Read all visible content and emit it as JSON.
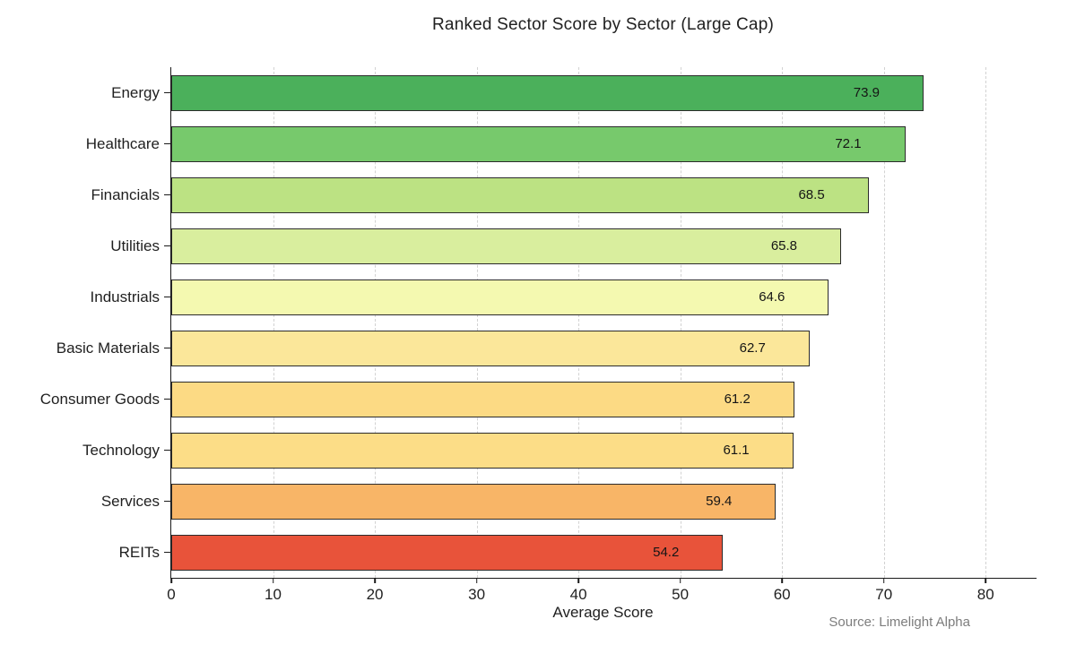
{
  "source_note": "Source: Limelight Alpha",
  "chart_data": {
    "type": "bar",
    "orientation": "horizontal",
    "title": "Ranked Sector Score by Sector (Large Cap)",
    "xlabel": "Average Score",
    "ylabel": "",
    "xlim": [
      0,
      85
    ],
    "xticks": [
      0,
      10,
      20,
      30,
      40,
      50,
      60,
      70,
      80
    ],
    "grid": "vertical-dashed",
    "legend": "none",
    "categories": [
      "Energy",
      "Healthcare",
      "Financials",
      "Utilities",
      "Industrials",
      "Basic Materials",
      "Consumer Goods",
      "Technology",
      "Services",
      "REITs"
    ],
    "values": [
      73.9,
      72.1,
      68.5,
      65.8,
      64.6,
      62.7,
      61.2,
      61.1,
      59.4,
      54.2
    ],
    "value_labels": [
      "73.9",
      "72.1",
      "68.5",
      "65.8",
      "64.6",
      "62.7",
      "61.2",
      "61.1",
      "59.4",
      "54.2"
    ],
    "bar_colors": [
      "#4bb05b",
      "#77c96c",
      "#bce283",
      "#d9ee9e",
      "#f4f9b0",
      "#fbe79a",
      "#fcda84",
      "#fcdd87",
      "#f8b567",
      "#e8533a"
    ],
    "bar_border_color": "#2b2b2b",
    "gridline_color": "#d2d2d2",
    "axis_color": "#1a1a1a"
  }
}
